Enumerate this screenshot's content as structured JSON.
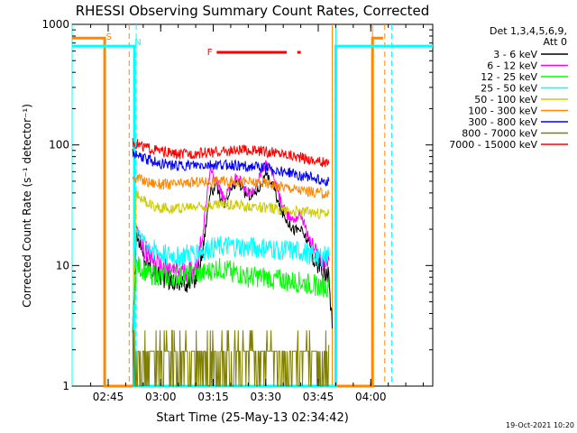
{
  "chart_data": {
    "type": "line",
    "title": "RHESSI Observing Summary Count Rates, Corrected",
    "xlabel": "Start Time (25-May-13 02:34:42)",
    "ylabel": "Corrected Count Rate (s⁻¹ detector⁻¹)",
    "yscale": "log",
    "ylim": [
      1,
      1000
    ],
    "xlim_minutes": [
      34.7,
      137.7
    ],
    "y_ticks": [
      {
        "value": 1,
        "label": "1"
      },
      {
        "value": 10,
        "label": "10"
      },
      {
        "value": 100,
        "label": "100"
      },
      {
        "value": 1000,
        "label": "1000"
      }
    ],
    "x_ticks": [
      {
        "minute": 45,
        "label": "02:45"
      },
      {
        "minute": 60,
        "label": "03:00"
      },
      {
        "minute": 75,
        "label": "03:15"
      },
      {
        "minute": 90,
        "label": "03:30"
      },
      {
        "minute": 105,
        "label": "03:45"
      },
      {
        "minute": 120,
        "label": "04:00"
      }
    ],
    "legend": {
      "placement": "right",
      "header": [
        "Det 1,3,4,5,6,9,",
        "Att 0"
      ]
    },
    "series": [
      {
        "name": "3 - 6 keV",
        "color": "#000000",
        "points": [
          [
            52,
            3.3
          ],
          [
            53,
            18
          ],
          [
            55,
            12
          ],
          [
            58,
            9
          ],
          [
            61,
            8
          ],
          [
            64,
            7.5
          ],
          [
            67,
            7
          ],
          [
            70,
            8
          ],
          [
            72,
            13
          ],
          [
            74,
            40
          ],
          [
            76,
            45
          ],
          [
            78,
            30
          ],
          [
            80,
            42
          ],
          [
            82,
            50
          ],
          [
            84,
            40
          ],
          [
            86,
            38
          ],
          [
            88,
            44
          ],
          [
            90,
            55
          ],
          [
            92,
            48
          ],
          [
            94,
            30
          ],
          [
            96,
            24
          ],
          [
            98,
            20
          ],
          [
            100,
            20
          ],
          [
            102,
            16
          ],
          [
            104,
            11
          ],
          [
            106,
            9
          ],
          [
            108,
            8
          ],
          [
            109,
            3
          ]
        ]
      },
      {
        "name": "6 - 12 keV",
        "color": "#ff00ff",
        "points": [
          [
            52,
            3.4
          ],
          [
            53,
            20
          ],
          [
            55,
            14
          ],
          [
            58,
            11
          ],
          [
            61,
            9.5
          ],
          [
            64,
            9
          ],
          [
            67,
            9
          ],
          [
            70,
            9.5
          ],
          [
            72,
            18
          ],
          [
            74,
            60
          ],
          [
            76,
            52
          ],
          [
            78,
            35
          ],
          [
            80,
            48
          ],
          [
            82,
            55
          ],
          [
            84,
            42
          ],
          [
            86,
            40
          ],
          [
            88,
            52
          ],
          [
            90,
            70
          ],
          [
            92,
            58
          ],
          [
            94,
            36
          ],
          [
            96,
            26
          ],
          [
            98,
            24
          ],
          [
            100,
            27
          ],
          [
            102,
            18
          ],
          [
            104,
            13
          ],
          [
            106,
            11
          ],
          [
            108,
            11
          ]
        ]
      },
      {
        "name": "12 - 25 keV",
        "color": "#00ff00",
        "points": [
          [
            52,
            3.4
          ],
          [
            53,
            10
          ],
          [
            57,
            8.5
          ],
          [
            62,
            8
          ],
          [
            67,
            8.2
          ],
          [
            72,
            8.5
          ],
          [
            76,
            9.5
          ],
          [
            80,
            9
          ],
          [
            85,
            8
          ],
          [
            90,
            8
          ],
          [
            95,
            7.5
          ],
          [
            100,
            7.2
          ],
          [
            105,
            6.8
          ],
          [
            108,
            6.6
          ]
        ]
      },
      {
        "name": "25 - 50 keV",
        "color": "#00ffff",
        "points": [
          [
            52,
            3.5
          ],
          [
            53,
            20
          ],
          [
            56,
            15
          ],
          [
            60,
            12.5
          ],
          [
            65,
            12
          ],
          [
            70,
            13
          ],
          [
            75,
            14
          ],
          [
            80,
            14.5
          ],
          [
            85,
            14
          ],
          [
            90,
            14
          ],
          [
            95,
            13.5
          ],
          [
            100,
            13
          ],
          [
            105,
            12
          ],
          [
            108,
            12
          ]
        ]
      },
      {
        "name": "50 - 100 keV",
        "color": "#cccc00",
        "points": [
          [
            52,
            3.5
          ],
          [
            53,
            40
          ],
          [
            56,
            33
          ],
          [
            60,
            30
          ],
          [
            65,
            30
          ],
          [
            70,
            31
          ],
          [
            75,
            32
          ],
          [
            80,
            32
          ],
          [
            85,
            31
          ],
          [
            90,
            30
          ],
          [
            95,
            29
          ],
          [
            100,
            28
          ],
          [
            105,
            27
          ],
          [
            108,
            27
          ]
        ]
      },
      {
        "name": "100 - 300 keV",
        "color": "#ff8800",
        "points": [
          [
            52,
            55
          ],
          [
            56,
            49
          ],
          [
            60,
            47
          ],
          [
            65,
            47
          ],
          [
            70,
            49
          ],
          [
            75,
            50
          ],
          [
            80,
            50
          ],
          [
            85,
            49
          ],
          [
            90,
            48
          ],
          [
            95,
            45
          ],
          [
            100,
            42
          ],
          [
            105,
            40
          ],
          [
            108,
            39
          ]
        ]
      },
      {
        "name": "300 - 800 keV",
        "color": "#0000ff",
        "points": [
          [
            52,
            85
          ],
          [
            56,
            76
          ],
          [
            60,
            70
          ],
          [
            65,
            67
          ],
          [
            70,
            67
          ],
          [
            75,
            68
          ],
          [
            80,
            68
          ],
          [
            85,
            66
          ],
          [
            90,
            64
          ],
          [
            95,
            60
          ],
          [
            100,
            56
          ],
          [
            105,
            52
          ],
          [
            108,
            50
          ]
        ]
      },
      {
        "name": "800 - 7000 keV",
        "color": "#808000",
        "points": [
          [
            52,
            1.95
          ],
          [
            60,
            1.95
          ],
          [
            70,
            1.95
          ],
          [
            80,
            1.95
          ],
          [
            90,
            1.95
          ],
          [
            100,
            1.95
          ],
          [
            108,
            2.2
          ]
        ]
      },
      {
        "name": "7000 - 15000 keV",
        "color": "#ff0000",
        "points": [
          [
            52,
            105
          ],
          [
            56,
            95
          ],
          [
            60,
            88
          ],
          [
            65,
            83
          ],
          [
            70,
            85
          ],
          [
            75,
            87
          ],
          [
            80,
            89
          ],
          [
            85,
            90
          ],
          [
            90,
            88
          ],
          [
            95,
            85
          ],
          [
            100,
            79
          ],
          [
            105,
            73
          ],
          [
            108,
            70
          ]
        ]
      }
    ],
    "step_series": [
      {
        "color": "#ff8800",
        "points": [
          [
            34.7,
            770
          ],
          [
            44,
            770
          ],
          [
            44,
            1
          ],
          [
            120.5,
            1
          ],
          [
            120.5,
            770
          ],
          [
            123.5,
            770
          ]
        ]
      },
      {
        "color": "#00ffff",
        "points": [
          [
            34.7,
            660
          ],
          [
            52.5,
            660
          ],
          [
            52.5,
            1
          ],
          [
            110,
            1
          ],
          [
            110,
            660
          ],
          [
            137.7,
            660
          ]
        ]
      }
    ],
    "markers": [
      {
        "label": "S",
        "color": "#ff8800",
        "minute": 45.2
      },
      {
        "label": "N",
        "color": "#00ffff",
        "minute": 53.5
      },
      {
        "label": "F",
        "color": "#ff0000",
        "minute": 74
      }
    ],
    "flare_bars": [
      {
        "color": "#ff0000",
        "start_minute": 76,
        "end_minute": 96
      },
      {
        "color": "#ff0000",
        "start_minute": 99,
        "end_minute": 100
      }
    ],
    "dashed_lines": [
      {
        "color": "#ff8800",
        "minute": 51
      },
      {
        "color": "#00ffff",
        "minute": 53
      },
      {
        "color": "#00ffff",
        "minute": 109
      },
      {
        "color": "#ff8800",
        "minute": 124
      },
      {
        "color": "#00ffff",
        "minute": 126
      }
    ],
    "solid_lines": [
      {
        "color": "#00ffff",
        "minute": 34.7
      },
      {
        "color": "#ff8800",
        "minute": 109
      },
      {
        "color": "#ff8800",
        "minute": 120.5
      },
      {
        "color": "#00ffff",
        "minute": 110
      }
    ]
  },
  "footer": "19-Oct-2021 10:20"
}
